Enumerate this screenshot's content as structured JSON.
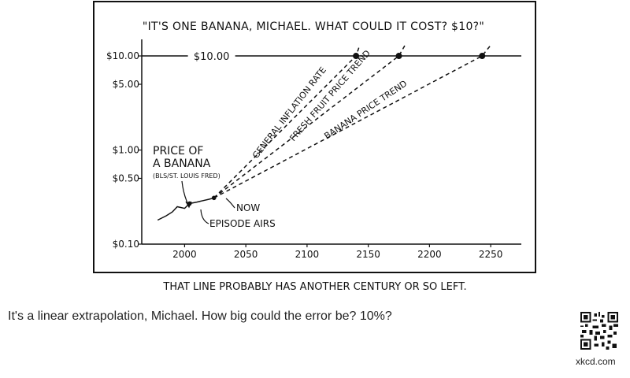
{
  "comic": {
    "title": "\"IT'S ONE BANANA, MICHAEL. WHAT COULD IT COST? $10?\"",
    "caption": "THAT LINE PROBABLY HAS ANOTHER CENTURY OR SO LEFT.",
    "alt_text": "It's a linear extrapolation, Michael. How big could the error be? 10%?",
    "site": "xkcd.com"
  },
  "annotations": {
    "price_label_1": "PRICE OF",
    "price_label_2": "A BANANA",
    "source": "(BLS/ST. LOUIS FRED)",
    "now": "NOW",
    "episode": "EPISODE AIRS",
    "ten_dollar_line": "$10.00",
    "inflation": "GENERAL INFLATION RATE",
    "fresh_fruit": "FRESH FRUIT PRICE TREND",
    "banana_trend": "BANANA PRICE TREND"
  },
  "chart_data": {
    "type": "line",
    "title": "\"IT'S ONE BANANA, MICHAEL. WHAT COULD IT COST? $10?\"",
    "xlabel": "",
    "ylabel": "",
    "xlim": [
      1965,
      2275
    ],
    "ylim": [
      0.1,
      15
    ],
    "yscale": "log",
    "x_ticks": [
      2000,
      2050,
      2100,
      2150,
      2200,
      2250
    ],
    "x_tick_labels": [
      "2000",
      "2050",
      "2100",
      "2150",
      "2200",
      "2250"
    ],
    "y_ticks": [
      0.1,
      0.5,
      1.0,
      5.0,
      10.0
    ],
    "y_tick_labels": [
      "$0.10",
      "$0.50",
      "$1.00",
      "$5.00",
      "$10.00"
    ],
    "grid": false,
    "series": [
      {
        "name": "PRICE OF A BANANA",
        "style": "solid",
        "x": [
          1978,
          1985,
          1990,
          1994,
          2000,
          2004,
          2010,
          2015,
          2020,
          2024
        ],
        "y": [
          0.18,
          0.2,
          0.22,
          0.25,
          0.24,
          0.27,
          0.28,
          0.29,
          0.3,
          0.31
        ]
      },
      {
        "name": "GENERAL INFLATION RATE",
        "style": "dashed",
        "x": [
          2024,
          2140,
          2143
        ],
        "y": [
          0.31,
          10.0,
          13.0
        ]
      },
      {
        "name": "FRESH FRUIT PRICE TREND",
        "style": "dashed",
        "x": [
          2024,
          2175,
          2180
        ],
        "y": [
          0.31,
          10.0,
          13.0
        ]
      },
      {
        "name": "BANANA PRICE TREND",
        "style": "dashed",
        "x": [
          2024,
          2243,
          2250
        ],
        "y": [
          0.31,
          10.0,
          13.0
        ]
      },
      {
        "name": "$10.00",
        "style": "solid",
        "x": [
          1965,
          2275
        ],
        "y": [
          10.0,
          10.0
        ]
      }
    ],
    "points": [
      {
        "label": "EPISODE AIRS",
        "x": 2004,
        "y": 0.27
      },
      {
        "label": "NOW",
        "x": 2024,
        "y": 0.31
      },
      {
        "label": "inflation hits $10",
        "x": 2140,
        "y": 10.0
      },
      {
        "label": "fresh fruit hits $10",
        "x": 2175,
        "y": 10.0
      },
      {
        "label": "banana hits $10",
        "x": 2243,
        "y": 10.0
      }
    ]
  }
}
